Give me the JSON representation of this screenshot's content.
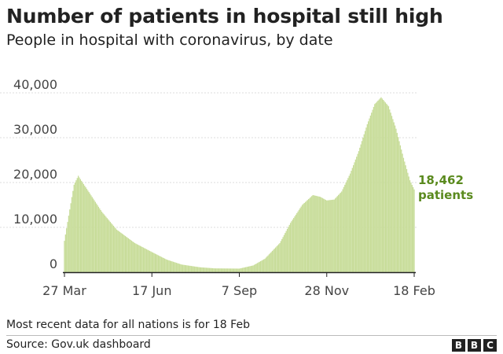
{
  "title": "Number of patients in hospital still high",
  "subtitle": "People in hospital with coronavirus, by date",
  "footnote": "Most recent data for all nations is for 18 Feb",
  "source": "Source: Gov.uk dashboard",
  "logo": {
    "text": "BBC",
    "letters": [
      "B",
      "B",
      "C"
    ]
  },
  "colors": {
    "bars": "#c7dc98",
    "baseline": "#222222",
    "grid": "#dddddd",
    "annotation": "#5a8a1e"
  },
  "annotation": {
    "value": "18,462",
    "label": "patients"
  },
  "chart_data": {
    "type": "bar",
    "x_start": "2020-03-27",
    "x_end": "2021-02-18",
    "x_ticks": [
      "27 Mar",
      "17 Jun",
      "7 Sep",
      "28 Nov",
      "18 Feb"
    ],
    "y_ticks": [
      "0",
      "10,000",
      "20,000",
      "30,000",
      "40,000"
    ],
    "ylim": [
      0,
      40000
    ],
    "grid": true,
    "latest_value": 18462,
    "keypoints": [
      [
        "2020-03-27",
        7000
      ],
      [
        "2020-04-01",
        14000
      ],
      [
        "2020-04-05",
        19500
      ],
      [
        "2020-04-09",
        21500
      ],
      [
        "2020-04-13",
        20000
      ],
      [
        "2020-04-20",
        17500
      ],
      [
        "2020-05-01",
        13500
      ],
      [
        "2020-05-15",
        9500
      ],
      [
        "2020-06-01",
        6500
      ],
      [
        "2020-06-17",
        4500
      ],
      [
        "2020-07-01",
        2800
      ],
      [
        "2020-07-15",
        1700
      ],
      [
        "2020-08-01",
        1100
      ],
      [
        "2020-08-15",
        850
      ],
      [
        "2020-09-07",
        800
      ],
      [
        "2020-09-20",
        1500
      ],
      [
        "2020-10-01",
        3000
      ],
      [
        "2020-10-15",
        6500
      ],
      [
        "2020-10-25",
        11000
      ],
      [
        "2020-11-05",
        15000
      ],
      [
        "2020-11-15",
        17200
      ],
      [
        "2020-11-22",
        16800
      ],
      [
        "2020-11-28",
        16000
      ],
      [
        "2020-12-05",
        16200
      ],
      [
        "2020-12-12",
        18000
      ],
      [
        "2020-12-20",
        22000
      ],
      [
        "2020-12-28",
        27000
      ],
      [
        "2021-01-05",
        33000
      ],
      [
        "2021-01-12",
        37500
      ],
      [
        "2021-01-18",
        39000
      ],
      [
        "2021-01-25",
        37000
      ],
      [
        "2021-02-01",
        32000
      ],
      [
        "2021-02-08",
        25500
      ],
      [
        "2021-02-14",
        20500
      ],
      [
        "2021-02-18",
        18462
      ]
    ]
  }
}
